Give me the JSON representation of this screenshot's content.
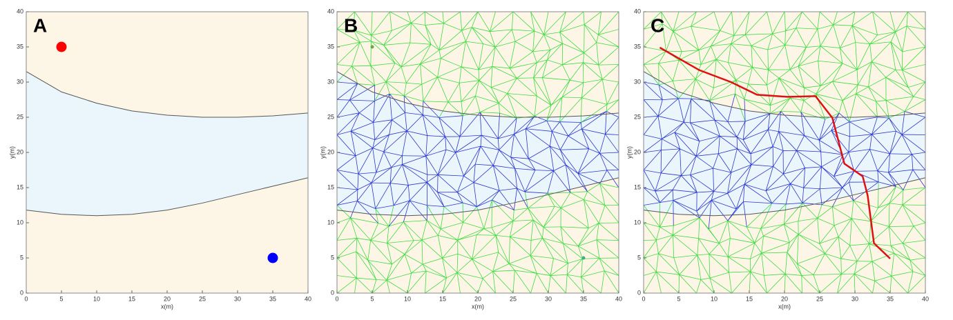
{
  "chart_data": [
    {
      "type": "scatter",
      "label": "A",
      "xlabel": "x(m)",
      "ylabel": "y(m)",
      "xlim": [
        0,
        40
      ],
      "ylim": [
        0,
        40
      ],
      "xticks": [
        0,
        5,
        10,
        15,
        20,
        25,
        30,
        35,
        40
      ],
      "yticks": [
        0,
        5,
        10,
        15,
        20,
        25,
        30,
        35,
        40
      ],
      "boundaries": [
        {
          "x": [
            0,
            5,
            10,
            15,
            20,
            25,
            30,
            35,
            40
          ],
          "y": [
            31.5,
            28.6,
            27.0,
            25.9,
            25.3,
            25.0,
            25.0,
            25.2,
            25.6
          ]
        },
        {
          "x": [
            0,
            5,
            10,
            15,
            20,
            25,
            30,
            35,
            40
          ],
          "y": [
            11.8,
            11.2,
            11.0,
            11.2,
            11.8,
            12.8,
            14.0,
            15.2,
            16.4
          ]
        }
      ],
      "points": [
        {
          "x": 5,
          "y": 35,
          "color": "#ff0000"
        },
        {
          "x": 35,
          "y": 5,
          "color": "#0000ff"
        }
      ]
    },
    {
      "type": "mesh",
      "label": "B",
      "xlabel": "x(m)",
      "ylabel": "y(m)",
      "xlim": [
        0,
        40
      ],
      "ylim": [
        0,
        40
      ],
      "xticks": [
        0,
        5,
        10,
        15,
        20,
        25,
        30,
        35,
        40
      ],
      "yticks": [
        0,
        5,
        10,
        15,
        20,
        25,
        30,
        35,
        40
      ],
      "boundaries": [
        {
          "x": [
            0,
            5,
            10,
            15,
            20,
            25,
            30,
            35,
            40
          ],
          "y": [
            31.5,
            28.6,
            27.0,
            25.9,
            25.3,
            25.0,
            25.0,
            25.2,
            25.6
          ]
        },
        {
          "x": [
            0,
            5,
            10,
            15,
            20,
            25,
            30,
            35,
            40
          ],
          "y": [
            11.8,
            11.2,
            11.0,
            11.2,
            11.8,
            12.8,
            14.0,
            15.2,
            16.4
          ]
        }
      ],
      "points": [
        {
          "x": 5,
          "y": 35,
          "color": "#66aa44"
        },
        {
          "x": 35,
          "y": 5,
          "color": "#44aa88"
        }
      ]
    },
    {
      "type": "mesh",
      "label": "C",
      "xlabel": "x(m)",
      "ylabel": "y(m)",
      "xlim": [
        0,
        40
      ],
      "ylim": [
        0,
        40
      ],
      "xticks": [
        0,
        5,
        10,
        15,
        20,
        25,
        30,
        35,
        40
      ],
      "yticks": [
        0,
        5,
        10,
        15,
        20,
        25,
        30,
        35,
        40
      ],
      "boundaries": [
        {
          "x": [
            0,
            5,
            10,
            15,
            20,
            25,
            30,
            35,
            40
          ],
          "y": [
            31.5,
            28.6,
            27.0,
            25.9,
            25.3,
            25.0,
            25.0,
            25.2,
            25.6
          ]
        },
        {
          "x": [
            0,
            5,
            10,
            15,
            20,
            25,
            30,
            35,
            40
          ],
          "y": [
            11.8,
            11.2,
            11.0,
            11.2,
            11.8,
            12.8,
            14.0,
            15.2,
            16.4
          ]
        }
      ],
      "path": {
        "color": "#e01010",
        "x": [
          2.3,
          7.9,
          12.4,
          16.1,
          20.4,
          24.4,
          26.8,
          28.5,
          31.1,
          31.8,
          32.7,
          35.0
        ],
        "y": [
          34.9,
          31.7,
          30.0,
          28.2,
          27.9,
          28.0,
          24.9,
          18.4,
          16.6,
          13.9,
          7.1,
          4.9
        ]
      }
    }
  ]
}
